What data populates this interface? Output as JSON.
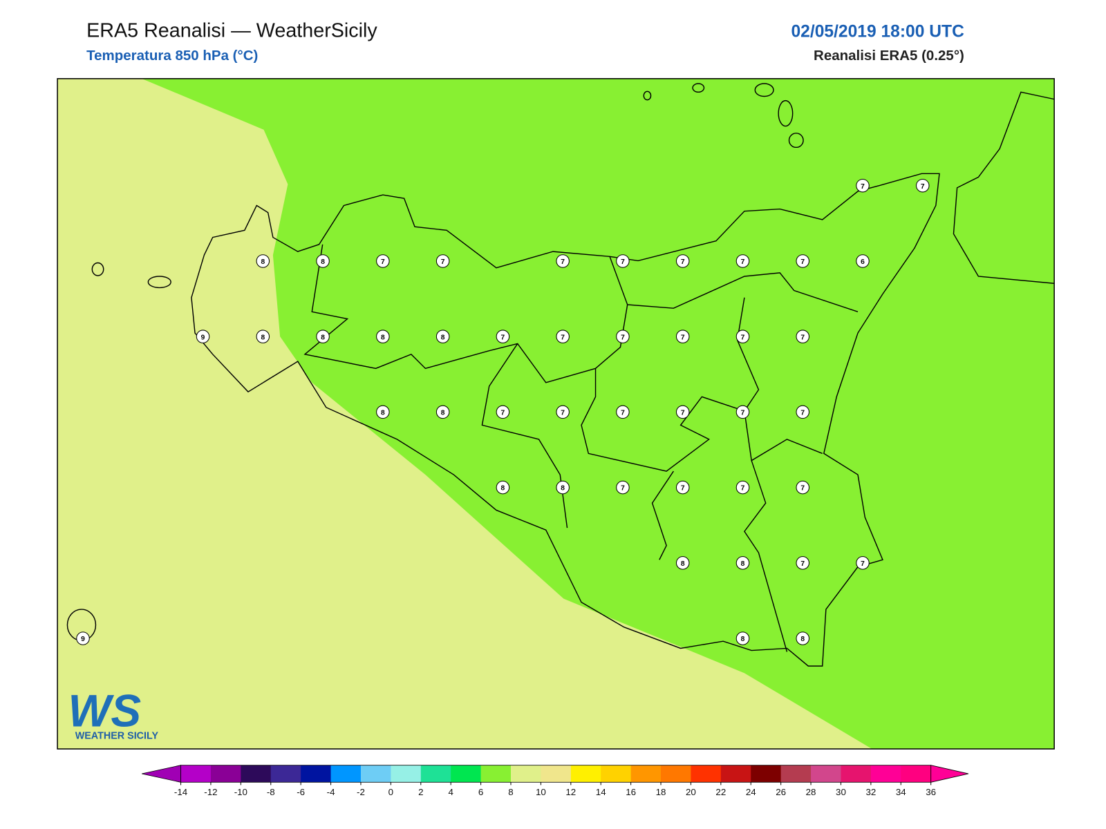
{
  "header": {
    "title": "ERA5 Reanalisi — WeatherSicily",
    "subtitle": "Temperatura 850 hPa (°C)",
    "date": "02/05/2019 18:00 UTC",
    "model": "Reanalisi ERA5 (0.25°)"
  },
  "stations": {
    "rows": [
      [
        null,
        null,
        null,
        null,
        null,
        null,
        null,
        null,
        null,
        null,
        null,
        null,
        null,
        7,
        7
      ],
      [
        null,
        null,
        null,
        8,
        8,
        7,
        7,
        null,
        7,
        7,
        7,
        7,
        7,
        6,
        null
      ],
      [
        null,
        null,
        9,
        8,
        8,
        8,
        8,
        7,
        7,
        7,
        7,
        7,
        7,
        null,
        null
      ],
      [
        null,
        null,
        null,
        null,
        null,
        8,
        8,
        7,
        7,
        7,
        7,
        7,
        7,
        null,
        null
      ],
      [
        null,
        null,
        null,
        null,
        null,
        null,
        null,
        8,
        8,
        7,
        7,
        7,
        7,
        null,
        null
      ],
      [
        null,
        null,
        null,
        null,
        null,
        null,
        null,
        null,
        null,
        null,
        8,
        8,
        7,
        7,
        null
      ],
      [
        9,
        null,
        null,
        null,
        null,
        null,
        null,
        null,
        null,
        null,
        null,
        8,
        8,
        null,
        null
      ]
    ]
  },
  "colorbar": {
    "ticks": [
      -14,
      -12,
      -10,
      -8,
      -6,
      -4,
      -2,
      0,
      2,
      4,
      6,
      8,
      10,
      12,
      14,
      16,
      18,
      20,
      22,
      24,
      26,
      28,
      30,
      32,
      34,
      36
    ],
    "colors": [
      "#b400c8",
      "#8a0096",
      "#2d0a5a",
      "#3c2896",
      "#0014a0",
      "#0096ff",
      "#6ecdf5",
      "#96f0e6",
      "#1ee196",
      "#00e650",
      "#88f032",
      "#e0f08a",
      "#f0e68c",
      "#fff000",
      "#ffd200",
      "#ff9600",
      "#ff7800",
      "#ff3200",
      "#c81414",
      "#7d0000",
      "#b43c50",
      "#d2468c",
      "#e6146e",
      "#ff0096",
      "#ff0080"
    ],
    "under": "#a000b4",
    "over": "#ff0096"
  },
  "logo": {
    "mark": "WS",
    "text": "WEATHER SICILY"
  }
}
